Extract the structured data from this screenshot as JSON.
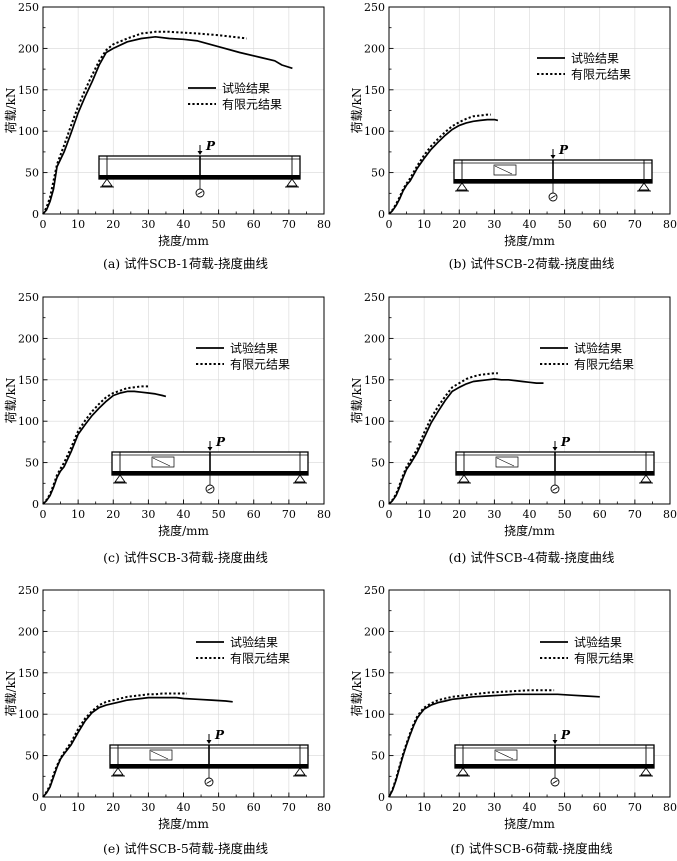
{
  "chart_data": [
    {
      "type": "line",
      "caption": "(a) 试件SCB-1荷载-挠度曲线",
      "xlabel": "挠度/mm",
      "ylabel": "荷载/kN",
      "xlim": [
        0,
        80
      ],
      "ylim": [
        0,
        250
      ],
      "xticks": [
        "0",
        "10",
        "20",
        "30",
        "40",
        "50",
        "60",
        "70",
        "80"
      ],
      "yticks": [
        "0",
        "50",
        "100",
        "150",
        "200",
        "250"
      ],
      "legend_position": "middle-right",
      "beam_load_label": "P",
      "series": [
        {
          "name": "试验结果",
          "style": "solid",
          "x": [
            0,
            1,
            2,
            3,
            4,
            6,
            8,
            10,
            12,
            14,
            16,
            18,
            20,
            24,
            28,
            32,
            36,
            40,
            44,
            50,
            56,
            62,
            66,
            68,
            71
          ],
          "y": [
            0,
            5,
            15,
            30,
            57,
            75,
            98,
            122,
            142,
            160,
            180,
            195,
            200,
            208,
            212,
            214,
            212,
            211,
            209,
            202,
            195,
            189,
            185,
            180,
            176
          ]
        },
        {
          "name": "有限元结果",
          "style": "dotted",
          "x": [
            0,
            1,
            2,
            3,
            4,
            6,
            8,
            10,
            12,
            14,
            16,
            18,
            20,
            24,
            28,
            32,
            36,
            40,
            44,
            50,
            56,
            58
          ],
          "y": [
            0,
            8,
            20,
            40,
            60,
            83,
            107,
            130,
            150,
            168,
            185,
            198,
            205,
            212,
            218,
            220,
            220,
            219,
            218,
            216,
            213,
            212
          ]
        }
      ]
    },
    {
      "type": "line",
      "caption": "(b) 试件SCB-2荷载-挠度曲线",
      "xlabel": "挠度/mm",
      "ylabel": "荷载/kN",
      "xlim": [
        0,
        80
      ],
      "ylim": [
        0,
        250
      ],
      "xticks": [
        "0",
        "10",
        "20",
        "30",
        "40",
        "50",
        "60",
        "70",
        "80"
      ],
      "yticks": [
        "0",
        "50",
        "100",
        "150",
        "200",
        "250"
      ],
      "legend_position": "top-right",
      "beam_load_label": "P",
      "series": [
        {
          "name": "试验结果",
          "style": "solid",
          "x": [
            0,
            1,
            2,
            3,
            4,
            5,
            6,
            8,
            10,
            12,
            14,
            16,
            18,
            20,
            22,
            24,
            26,
            28,
            30,
            31
          ],
          "y": [
            0,
            4,
            10,
            18,
            28,
            35,
            40,
            55,
            67,
            78,
            87,
            95,
            102,
            107,
            110,
            112,
            113,
            114,
            114,
            113
          ]
        },
        {
          "name": "有限元结果",
          "style": "dotted",
          "x": [
            0,
            1,
            2,
            3,
            4,
            5,
            6,
            8,
            10,
            12,
            14,
            16,
            18,
            20,
            22,
            24,
            26,
            28,
            29
          ],
          "y": [
            0,
            5,
            12,
            20,
            30,
            37,
            43,
            58,
            71,
            82,
            91,
            99,
            106,
            111,
            115,
            118,
            119,
            120,
            120
          ]
        }
      ]
    },
    {
      "type": "line",
      "caption": "(c) 试件SCB-3荷载-挠度曲线",
      "xlabel": "挠度/mm",
      "ylabel": "荷载/kN",
      "xlim": [
        0,
        80
      ],
      "ylim": [
        0,
        250
      ],
      "xticks": [
        "0",
        "10",
        "20",
        "30",
        "40",
        "50",
        "60",
        "70",
        "80"
      ],
      "yticks": [
        "0",
        "50",
        "100",
        "150",
        "200",
        "250"
      ],
      "legend_position": "top-right",
      "beam_load_label": "P",
      "series": [
        {
          "name": "试验结果",
          "style": "solid",
          "x": [
            0,
            1,
            2,
            3,
            4,
            5,
            6,
            8,
            10,
            12,
            14,
            16,
            18,
            20,
            22,
            24,
            26,
            28,
            30,
            32,
            34,
            35
          ],
          "y": [
            0,
            4,
            10,
            20,
            32,
            40,
            45,
            63,
            84,
            96,
            107,
            116,
            124,
            131,
            134,
            136,
            136,
            135,
            134,
            133,
            131,
            130
          ]
        },
        {
          "name": "有限元结果",
          "style": "dotted",
          "x": [
            0,
            1,
            2,
            3,
            4,
            5,
            6,
            8,
            10,
            12,
            14,
            16,
            18,
            20,
            22,
            24,
            26,
            28,
            30
          ],
          "y": [
            0,
            5,
            12,
            23,
            35,
            43,
            50,
            68,
            88,
            101,
            112,
            121,
            129,
            134,
            137,
            140,
            141,
            142,
            142
          ]
        }
      ]
    },
    {
      "type": "line",
      "caption": "(d) 试件SCB-4荷载-挠度曲线",
      "xlabel": "挠度/mm",
      "ylabel": "荷载/kN",
      "xlim": [
        0,
        80
      ],
      "ylim": [
        0,
        250
      ],
      "xticks": [
        "0",
        "10",
        "20",
        "30",
        "40",
        "50",
        "60",
        "70",
        "80"
      ],
      "yticks": [
        "0",
        "50",
        "100",
        "150",
        "200",
        "250"
      ],
      "legend_position": "top-right",
      "beam_load_label": "P",
      "series": [
        {
          "name": "试验结果",
          "style": "solid",
          "x": [
            0,
            1,
            2,
            3,
            4,
            5,
            6,
            8,
            10,
            12,
            14,
            16,
            18,
            20,
            22,
            24,
            26,
            28,
            30,
            32,
            34,
            36,
            38,
            40,
            42,
            44
          ],
          "y": [
            0,
            4,
            10,
            20,
            32,
            42,
            48,
            62,
            80,
            98,
            112,
            125,
            136,
            141,
            145,
            148,
            149,
            150,
            151,
            150,
            150,
            149,
            148,
            147,
            146,
            146
          ]
        },
        {
          "name": "有限元结果",
          "style": "dotted",
          "x": [
            0,
            1,
            2,
            3,
            4,
            5,
            6,
            8,
            10,
            12,
            14,
            16,
            18,
            20,
            22,
            24,
            26,
            28,
            30,
            31
          ],
          "y": [
            0,
            5,
            12,
            23,
            35,
            45,
            52,
            66,
            86,
            104,
            118,
            130,
            141,
            146,
            151,
            154,
            156,
            157,
            158,
            158
          ]
        }
      ]
    },
    {
      "type": "line",
      "caption": "(e) 试件SCB-5荷载-挠度曲线",
      "xlabel": "挠度/mm",
      "ylabel": "荷载/kN",
      "xlim": [
        0,
        80
      ],
      "ylim": [
        0,
        250
      ],
      "xticks": [
        "0",
        "10",
        "20",
        "30",
        "40",
        "50",
        "60",
        "70",
        "80"
      ],
      "yticks": [
        "0",
        "50",
        "100",
        "150",
        "200",
        "250"
      ],
      "legend_position": "top-right",
      "beam_load_label": "P",
      "series": [
        {
          "name": "试验结果",
          "style": "solid",
          "x": [
            0,
            1,
            2,
            3,
            4,
            5,
            6,
            8,
            10,
            12,
            14,
            16,
            18,
            20,
            22,
            24,
            26,
            28,
            30,
            32,
            34,
            36,
            38,
            40,
            44,
            48,
            52,
            54
          ],
          "y": [
            0,
            5,
            12,
            24,
            36,
            46,
            52,
            63,
            78,
            92,
            102,
            108,
            111,
            113,
            115,
            117,
            118,
            119,
            120,
            120,
            120,
            120,
            120,
            119,
            118,
            117,
            116,
            115
          ]
        },
        {
          "name": "有限元结果",
          "style": "dotted",
          "x": [
            0,
            1,
            2,
            3,
            4,
            5,
            6,
            8,
            10,
            12,
            14,
            16,
            18,
            20,
            22,
            24,
            26,
            28,
            30,
            32,
            34,
            36,
            38,
            40,
            41
          ],
          "y": [
            0,
            6,
            14,
            27,
            38,
            47,
            54,
            66,
            82,
            95,
            104,
            111,
            115,
            117,
            119,
            121,
            122,
            123,
            124,
            124,
            125,
            125,
            125,
            125,
            125
          ]
        }
      ]
    },
    {
      "type": "line",
      "caption": "(f) 试件SCB-6荷载-挠度曲线",
      "xlabel": "挠度/mm",
      "ylabel": "荷载/kN",
      "xlim": [
        0,
        80
      ],
      "ylim": [
        0,
        250
      ],
      "xticks": [
        "0",
        "10",
        "20",
        "30",
        "40",
        "50",
        "60",
        "70",
        "80"
      ],
      "yticks": [
        "0",
        "50",
        "100",
        "150",
        "200",
        "250"
      ],
      "legend_position": "top-right",
      "beam_load_label": "P",
      "series": [
        {
          "name": "试验结果",
          "style": "solid",
          "x": [
            0,
            1,
            2,
            3,
            4,
            5,
            6,
            7,
            8,
            9,
            10,
            12,
            14,
            16,
            18,
            20,
            24,
            28,
            32,
            36,
            40,
            44,
            48,
            52,
            56,
            60
          ],
          "y": [
            0,
            8,
            20,
            35,
            50,
            63,
            75,
            86,
            95,
            101,
            106,
            111,
            114,
            116,
            118,
            119,
            121,
            122,
            123,
            124,
            124,
            124,
            124,
            123,
            122,
            121
          ]
        },
        {
          "name": "有限元结果",
          "style": "dotted",
          "x": [
            0,
            1,
            2,
            3,
            4,
            5,
            6,
            7,
            8,
            9,
            10,
            12,
            14,
            16,
            18,
            20,
            24,
            28,
            32,
            36,
            40,
            44,
            47
          ],
          "y": [
            0,
            9,
            22,
            37,
            52,
            65,
            77,
            88,
            97,
            103,
            108,
            113,
            117,
            119,
            121,
            122,
            124,
            126,
            127,
            128,
            129,
            129,
            129
          ]
        }
      ]
    }
  ]
}
